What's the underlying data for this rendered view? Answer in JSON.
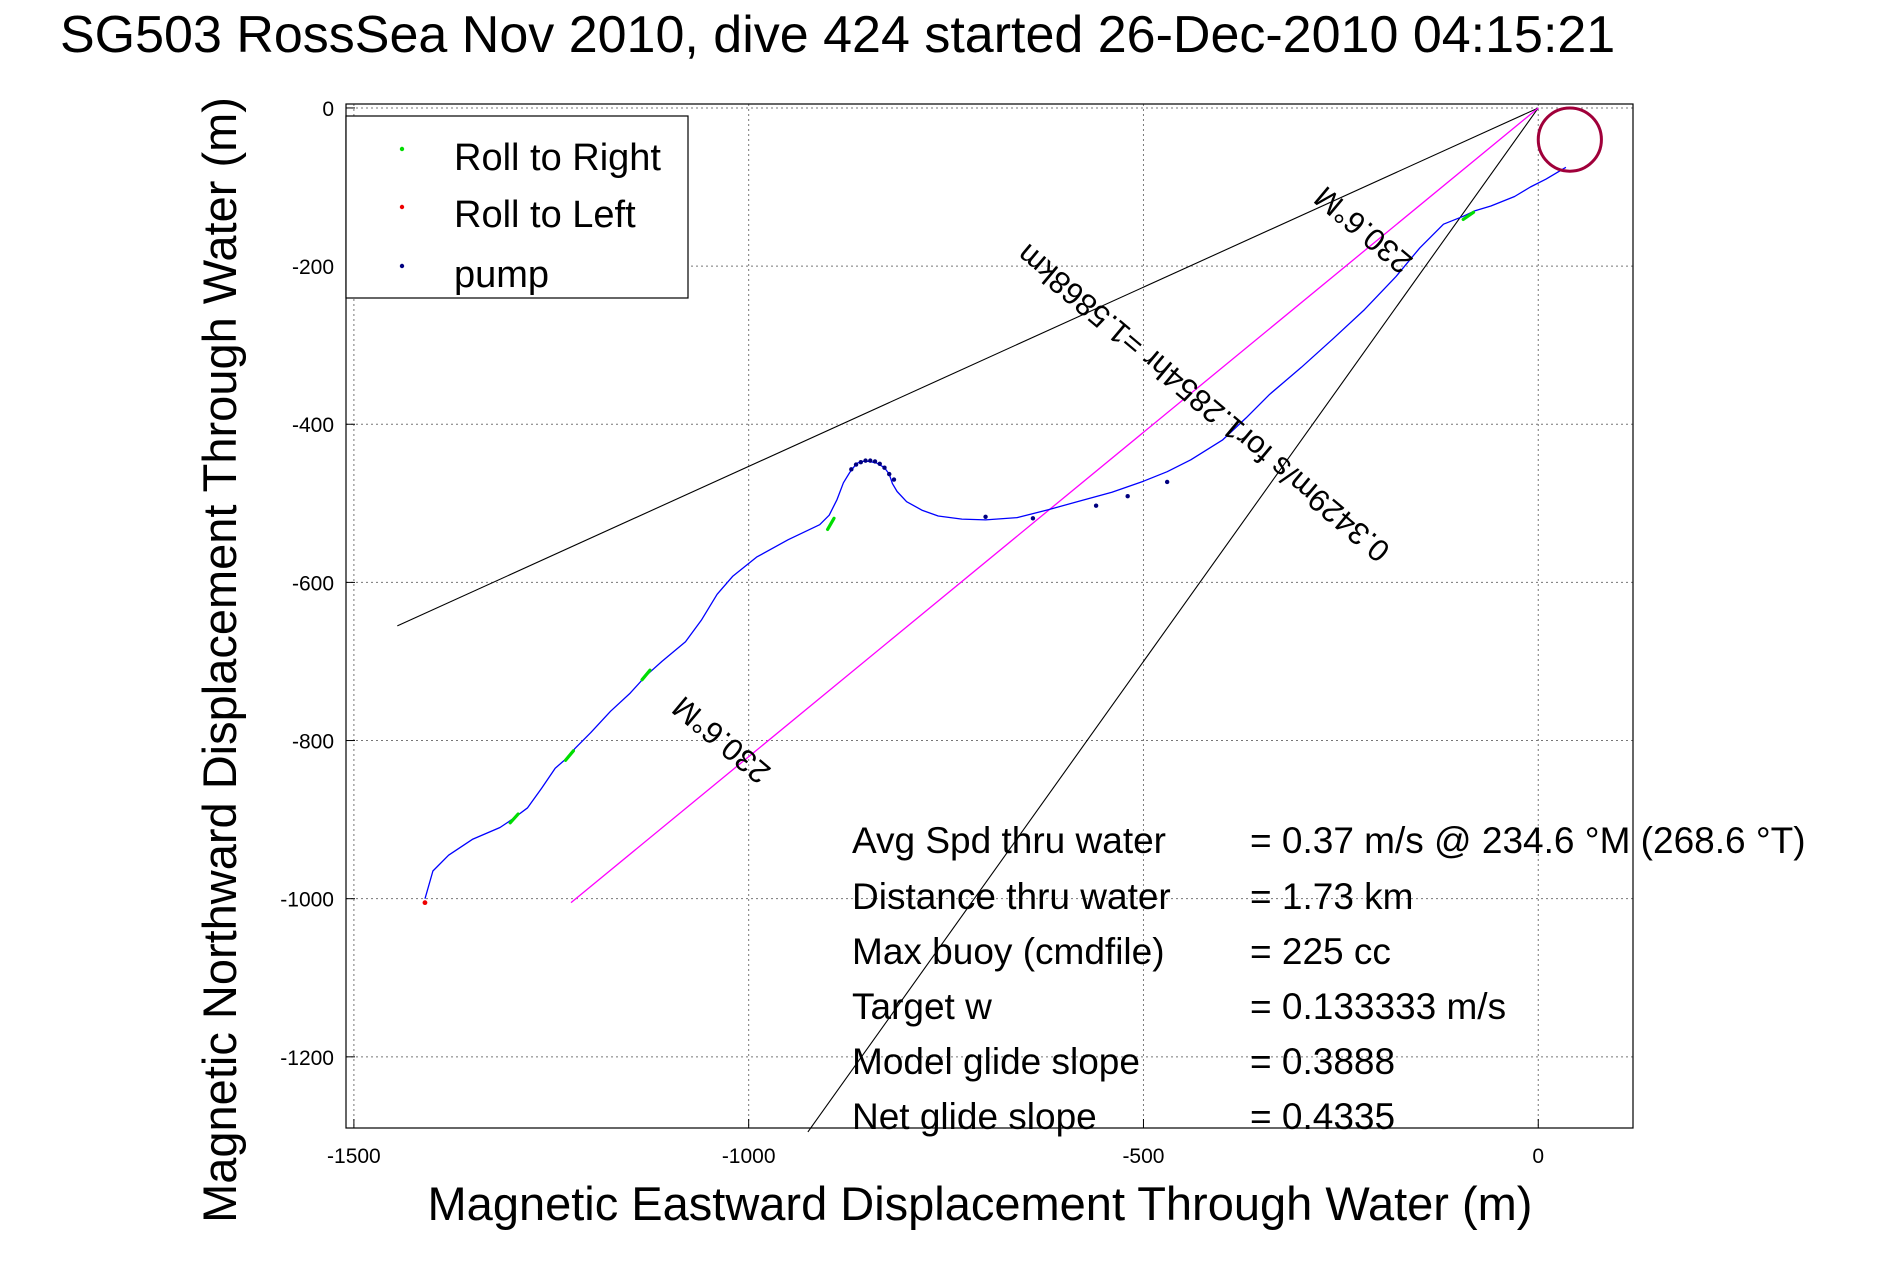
{
  "chart_data": {
    "type": "line",
    "title": "SG503 RossSea Nov 2010, dive 424 started 26-Dec-2010 04:15:21",
    "xlabel": "Magnetic Eastward Displacement Through Water (m)",
    "ylabel": "Magnetic Northward Displacement Through Water (m)",
    "xlim": [
      -1510,
      120
    ],
    "ylim": [
      -1290,
      5
    ],
    "xticks": [
      -1500,
      -1000,
      -500,
      0
    ],
    "xtick_labels": [
      "-1500",
      "-1000",
      "-500",
      "0"
    ],
    "yticks": [
      0,
      -200,
      -400,
      -600,
      -800,
      -1000,
      -1200
    ],
    "ytick_labels": [
      "0",
      "-200",
      "-400",
      "-600",
      "-800",
      "-1000",
      "-1200"
    ],
    "grid": true,
    "legend_position": "top-left",
    "legend": [
      {
        "label": "Roll to Right",
        "color": "#00dd00"
      },
      {
        "label": "Roll to Left",
        "color": "#ee0000"
      },
      {
        "label": "pump",
        "color": "#000080"
      }
    ],
    "track": {
      "color": "#0000ff",
      "x": [
        -1410,
        -1400,
        -1380,
        -1350,
        -1315,
        -1300,
        -1280,
        -1262,
        -1245,
        -1230,
        -1220,
        -1200,
        -1175,
        -1150,
        -1130,
        -1110,
        -1080,
        -1060,
        -1040,
        -1020,
        -990,
        -950,
        -910,
        -898,
        -888,
        -880,
        -872,
        -866,
        -862,
        -856,
        -848,
        -838,
        -828,
        -822,
        -818,
        -812,
        -800,
        -780,
        -760,
        -730,
        -700,
        -660,
        -620,
        -580,
        -540,
        -500,
        -470,
        -440,
        -400,
        -370,
        -340,
        -300,
        -260,
        -220,
        -180,
        -150,
        -120,
        -95,
        -80,
        -60,
        -30,
        -10,
        10,
        35
      ],
      "y": [
        -1000,
        -965,
        -945,
        -925,
        -910,
        -900,
        -885,
        -860,
        -835,
        -822,
        -810,
        -790,
        -763,
        -740,
        -718,
        -700,
        -675,
        -648,
        -615,
        -592,
        -568,
        -546,
        -527,
        -515,
        -495,
        -474,
        -461,
        -453,
        -449,
        -447,
        -447,
        -449,
        -455,
        -463,
        -475,
        -485,
        -498,
        -509,
        -516,
        -520,
        -521,
        -518,
        -508,
        -497,
        -486,
        -472,
        -460,
        -445,
        -420,
        -392,
        -362,
        -328,
        -292,
        -255,
        -213,
        -177,
        -147,
        -137,
        -130,
        -124,
        -112,
        -100,
        -90,
        -75
      ]
    },
    "roll_right_segments": [
      {
        "x": [
          -1302,
          -1292
        ],
        "y": [
          -904,
          -893
        ]
      },
      {
        "x": [
          -1232,
          -1222
        ],
        "y": [
          -825,
          -813
        ]
      },
      {
        "x": [
          -1135,
          -1125
        ],
        "y": [
          -723,
          -711
        ]
      },
      {
        "x": [
          -900,
          -892
        ],
        "y": [
          -533,
          -519
        ]
      },
      {
        "x": [
          -95,
          -82
        ],
        "y": [
          -141,
          -132
        ]
      }
    ],
    "roll_left_point": {
      "x": -1410,
      "y": -1005
    },
    "surface_loop": {
      "cx": 40,
      "cy": -40,
      "r": 40,
      "color": "#a0003a"
    },
    "pump_points": {
      "x": [
        -870,
        -864,
        -858,
        -852,
        -846,
        -840,
        -834,
        -828,
        -822,
        -816,
        -700,
        -640,
        -560,
        -520,
        -470
      ],
      "y": [
        -457,
        -451,
        -448,
        -446,
        -446,
        -447,
        -450,
        -455,
        -463,
        -470,
        -517,
        -519,
        -503,
        -491,
        -473
      ]
    },
    "course_line": {
      "label": "230.6°M",
      "color": "#ff00ff",
      "x": [
        0,
        -1225
      ],
      "y": [
        0,
        -1005
      ]
    },
    "bound_lines": [
      {
        "x": [
          0,
          -1445
        ],
        "y": [
          0,
          -655
        ]
      },
      {
        "x": [
          0,
          -925
        ],
        "y": [
          0,
          -1295
        ]
      }
    ],
    "line_annotations": [
      "230.6°M",
      "0.3429m/s for1.2854hr =1.5868km",
      "230.6°M"
    ],
    "stats": [
      {
        "label": "Avg Spd thru water",
        "value": "=  0.37 m/s @ 234.6 °M (268.6 °T)"
      },
      {
        "label": "Distance thru water",
        "value": "=  1.73 km"
      },
      {
        "label": "Max buoy (cmdfile)",
        "value": "= 225 cc"
      },
      {
        "label": "Target w",
        "value": "= 0.133333 m/s"
      },
      {
        "label": "Model glide slope",
        "value": "= 0.3888"
      },
      {
        "label": "Net glide slope",
        "value": "= 0.4335"
      }
    ]
  }
}
